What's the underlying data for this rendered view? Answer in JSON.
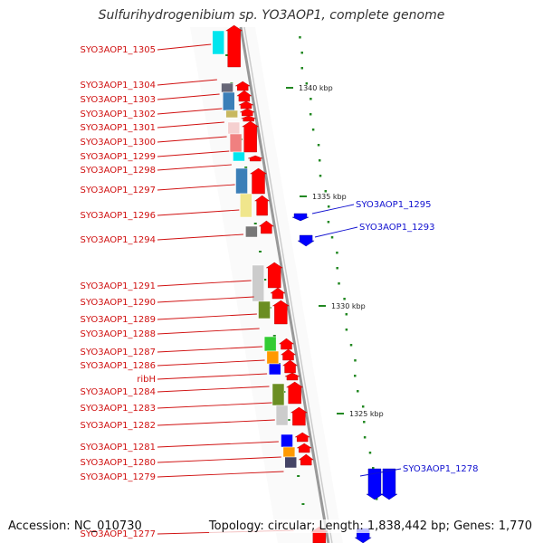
{
  "title": "Sulfurihydrogenibium sp. YO3AOP1, complete genome",
  "footer": {
    "accession": "Accession: NC_010730",
    "topology": "Topology: circular; Length: 1,838,442 bp; Genes: 1,770"
  },
  "colors": {
    "left_label": "#d01010",
    "right_label": "#1010d0",
    "forward_gene": "#ff0000",
    "reverse_gene": "#0000ff",
    "backbone": "#999999",
    "tick": "#228822"
  },
  "ticks": [
    "1340 kbp",
    "1335 kbp",
    "1330 kbp",
    "1325 kbp"
  ],
  "left_labels": [
    "SYO3AOP1_1305",
    "SYO3AOP1_1304",
    "SYO3AOP1_1303",
    "SYO3AOP1_1302",
    "SYO3AOP1_1301",
    "SYO3AOP1_1300",
    "SYO3AOP1_1299",
    "SYO3AOP1_1298",
    "SYO3AOP1_1297",
    "SYO3AOP1_1296",
    "SYO3AOP1_1294",
    "SYO3AOP1_1291",
    "SYO3AOP1_1290",
    "SYO3AOP1_1289",
    "SYO3AOP1_1288",
    "SYO3AOP1_1287",
    "SYO3AOP1_1286",
    "ribH",
    "SYO3AOP1_1284",
    "SYO3AOP1_1283",
    "SYO3AOP1_1282",
    "SYO3AOP1_1281",
    "SYO3AOP1_1280",
    "SYO3AOP1_1279",
    "SYO3AOP1_1277"
  ],
  "right_labels": [
    "SYO3AOP1_1295",
    "SYO3AOP1_1293",
    "SYO3AOP1_1278"
  ]
}
